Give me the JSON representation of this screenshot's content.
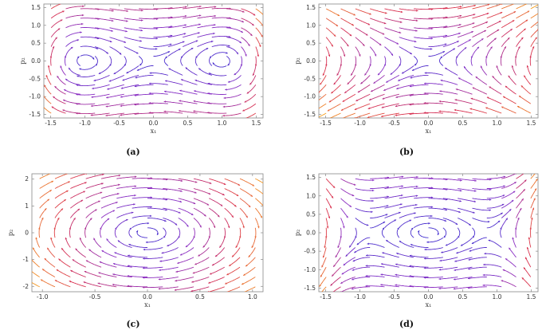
{
  "chart_data": [
    {
      "type": "streamplot",
      "caption": "(a)",
      "xlabel": "x₁",
      "ylabel": "p₂",
      "xlim": [
        -1.6,
        1.6
      ],
      "ylim": [
        -1.6,
        1.6
      ],
      "xticks": [
        "-1.5",
        "-1.0",
        "-0.5",
        "0.0",
        "0.5",
        "1.0",
        "1.5"
      ],
      "yticks": [
        "-1.5",
        "-1.0",
        "-0.5",
        "0.0",
        "0.5",
        "1.0",
        "1.5"
      ],
      "field": "double-well",
      "centers": [
        [
          -1.0,
          0.0
        ],
        [
          1.0,
          0.0
        ]
      ],
      "saddles": [
        [
          0.0,
          0.0
        ]
      ],
      "color_scale": [
        "#3b2fd0",
        "#8a2fc4",
        "#d9304f",
        "#f7a21b"
      ]
    },
    {
      "type": "streamplot",
      "caption": "(b)",
      "xlabel": "x₁",
      "ylabel": "p₂",
      "xlim": [
        -1.6,
        1.6
      ],
      "ylim": [
        -1.6,
        1.6
      ],
      "xticks": [
        "-1.5",
        "-1.0",
        "-0.5",
        "0.0",
        "0.5",
        "1.0",
        "1.5"
      ],
      "yticks": [
        "-1.5",
        "-1.0",
        "-0.5",
        "0.0",
        "0.5",
        "1.0",
        "1.5"
      ],
      "field": "saddle",
      "centers": [],
      "saddles": [
        [
          0.0,
          0.0
        ]
      ],
      "color_scale": [
        "#3b2fd0",
        "#8a2fc4",
        "#d9304f",
        "#f7a21b"
      ]
    },
    {
      "type": "streamplot",
      "caption": "(c)",
      "xlabel": "x₁",
      "ylabel": "p₂",
      "xlim": [
        -1.1,
        1.1
      ],
      "ylim": [
        -2.2,
        2.2
      ],
      "xticks": [
        "-1.0",
        "-0.5",
        "0.0",
        "0.5",
        "1.0"
      ],
      "yticks": [
        "-2",
        "-1",
        "0",
        "1",
        "2"
      ],
      "field": "single-center",
      "centers": [
        [
          0.0,
          0.0
        ]
      ],
      "saddles": [],
      "color_scale": [
        "#3b2fd0",
        "#8a2fc4",
        "#d9304f",
        "#f7a21b"
      ]
    },
    {
      "type": "streamplot",
      "caption": "(d)",
      "xlabel": "x₁",
      "ylabel": "p₂",
      "xlim": [
        -1.6,
        1.6
      ],
      "ylim": [
        -1.6,
        1.6
      ],
      "xticks": [
        "-1.5",
        "-1.0",
        "-0.5",
        "0.0",
        "0.5",
        "1.0",
        "1.5"
      ],
      "yticks": [
        "-1.5",
        "-1.0",
        "-0.5",
        "0.0",
        "0.5",
        "1.0",
        "1.5"
      ],
      "field": "center-with-saddles",
      "centers": [
        [
          0.0,
          0.0
        ]
      ],
      "saddles": [
        [
          -0.85,
          0.0
        ],
        [
          0.85,
          0.0
        ]
      ],
      "color_scale": [
        "#3b2fd0",
        "#8a2fc4",
        "#d9304f",
        "#f7a21b"
      ]
    }
  ]
}
